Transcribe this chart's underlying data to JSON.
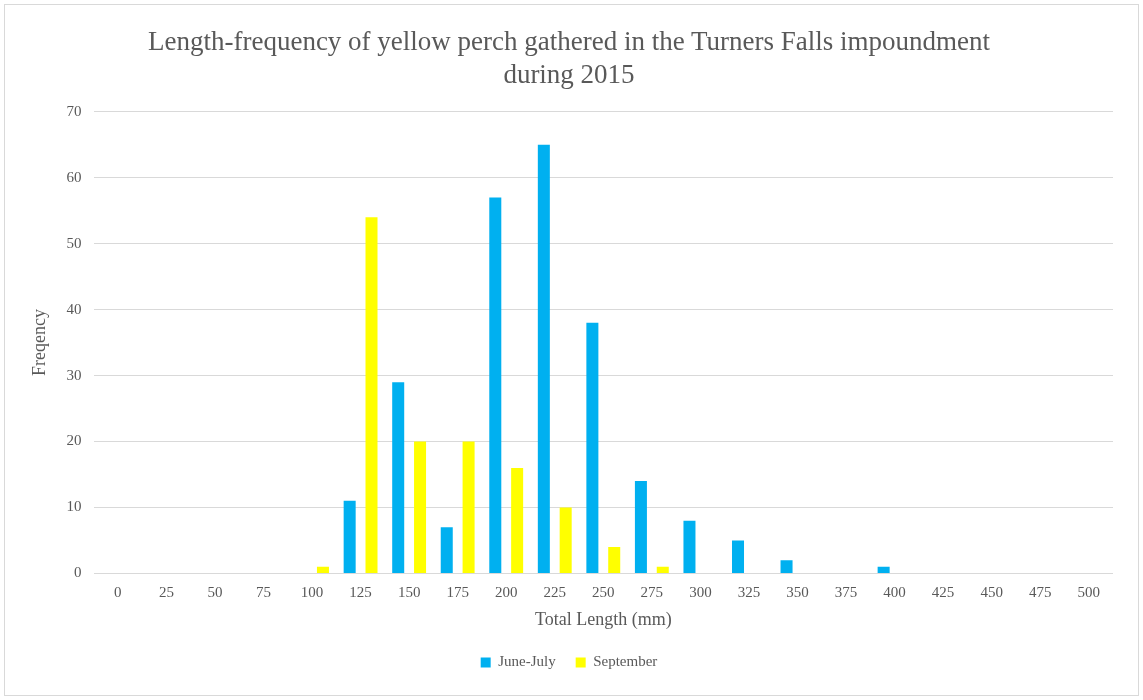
{
  "chart_data": {
    "type": "bar",
    "title": "Length-frequency of yellow perch gathered in the Turners Falls impoundment during 2015",
    "xlabel": "Total Length (mm)",
    "ylabel": "Freqency",
    "categories": [
      "0",
      "25",
      "50",
      "75",
      "100",
      "125",
      "150",
      "175",
      "200",
      "225",
      "250",
      "275",
      "300",
      "325",
      "350",
      "375",
      "400",
      "425",
      "450",
      "475",
      "500"
    ],
    "series": [
      {
        "name": "June-July",
        "color": "#00b0f0",
        "values": [
          0,
          0,
          0,
          0,
          0,
          11,
          29,
          7,
          57,
          65,
          38,
          14,
          8,
          5,
          2,
          0,
          1,
          0,
          0,
          0,
          0
        ]
      },
      {
        "name": "September",
        "color": "#ffff00",
        "values": [
          0,
          0,
          0,
          0,
          1,
          54,
          20,
          20,
          16,
          10,
          4,
          1,
          0,
          0,
          0,
          0,
          0,
          0,
          0,
          0,
          0
        ]
      }
    ],
    "ylim": [
      0,
      70
    ],
    "yticks": [
      0,
      10,
      20,
      30,
      40,
      50,
      60,
      70
    ],
    "grid": "y",
    "legend": "bottom"
  }
}
